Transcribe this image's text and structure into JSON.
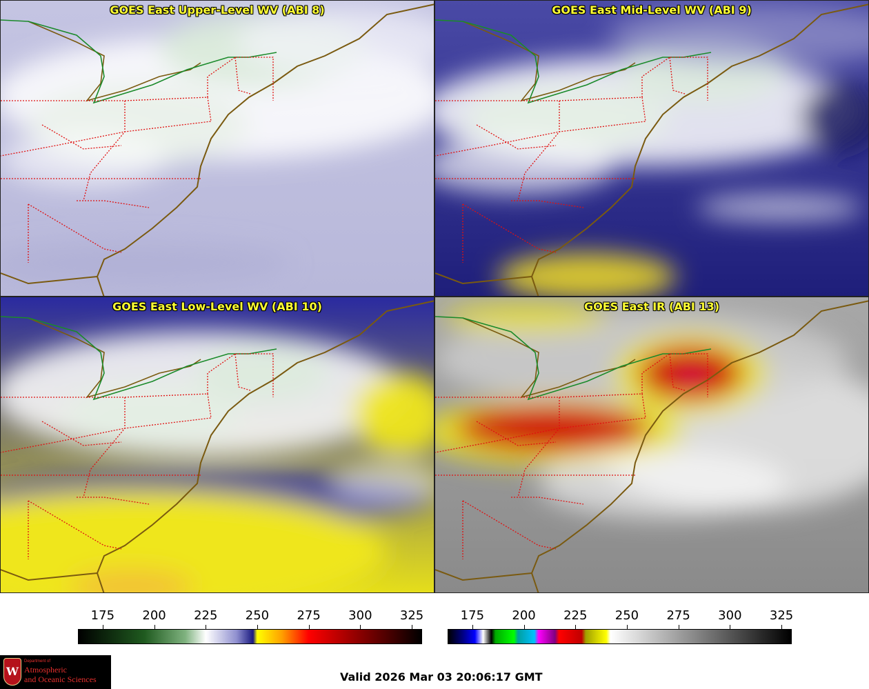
{
  "panels": [
    {
      "title": "GOES East Upper-Level WV (ABI 8)",
      "scheme": "wv_upper"
    },
    {
      "title": "GOES East Mid-Level WV (ABI 9)",
      "scheme": "wv_mid"
    },
    {
      "title": "GOES East Low-Level WV (ABI 10)",
      "scheme": "wv_low"
    },
    {
      "title": "GOES East IR (ABI 13)",
      "scheme": "ir"
    }
  ],
  "colorbars": {
    "wv": {
      "ticks": [
        "175",
        "200",
        "225",
        "250",
        "275",
        "300",
        "325"
      ],
      "range": [
        163,
        330
      ],
      "stops": [
        {
          "t": 163,
          "c": "#000000"
        },
        {
          "t": 195,
          "c": "#1f5a1f"
        },
        {
          "t": 215,
          "c": "#7fb27f"
        },
        {
          "t": 225,
          "c": "#ffffff"
        },
        {
          "t": 240,
          "c": "#8f8fcf"
        },
        {
          "t": 248,
          "c": "#1a1a80"
        },
        {
          "t": 250,
          "c": "#ffff00"
        },
        {
          "t": 262,
          "c": "#ffa000"
        },
        {
          "t": 275,
          "c": "#ff0000"
        },
        {
          "t": 300,
          "c": "#8a0000"
        },
        {
          "t": 330,
          "c": "#000000"
        }
      ]
    },
    "ir": {
      "ticks": [
        "175",
        "200",
        "225",
        "250",
        "275",
        "300",
        "325"
      ],
      "range": [
        163,
        330
      ],
      "stops": [
        {
          "t": 163,
          "c": "#000000"
        },
        {
          "t": 170,
          "c": "#000080"
        },
        {
          "t": 176,
          "c": "#0000ff"
        },
        {
          "t": 180,
          "c": "#ffffff"
        },
        {
          "t": 184,
          "c": "#000000"
        },
        {
          "t": 186,
          "c": "#00aa00"
        },
        {
          "t": 195,
          "c": "#00ff00"
        },
        {
          "t": 197,
          "c": "#00a0a0"
        },
        {
          "t": 205,
          "c": "#00c0ff"
        },
        {
          "t": 207,
          "c": "#ff00ff"
        },
        {
          "t": 215,
          "c": "#800080"
        },
        {
          "t": 217,
          "c": "#ff0000"
        },
        {
          "t": 228,
          "c": "#c00000"
        },
        {
          "t": 230,
          "c": "#a0a000"
        },
        {
          "t": 240,
          "c": "#ffff00"
        },
        {
          "t": 242,
          "c": "#ffffff"
        },
        {
          "t": 330,
          "c": "#000000"
        }
      ]
    }
  },
  "logo": {
    "department": "Department of",
    "line1": "Atmospheric",
    "line2": "and Oceanic Sciences",
    "shield_letter": "W"
  },
  "valid_time": "Valid 2026 Mar 03 20:06:17 GMT",
  "colors": {
    "title": "#ffff33",
    "coast": "#7a5a10",
    "state_border": "#e01010",
    "national_border": "#1a8a2a"
  }
}
